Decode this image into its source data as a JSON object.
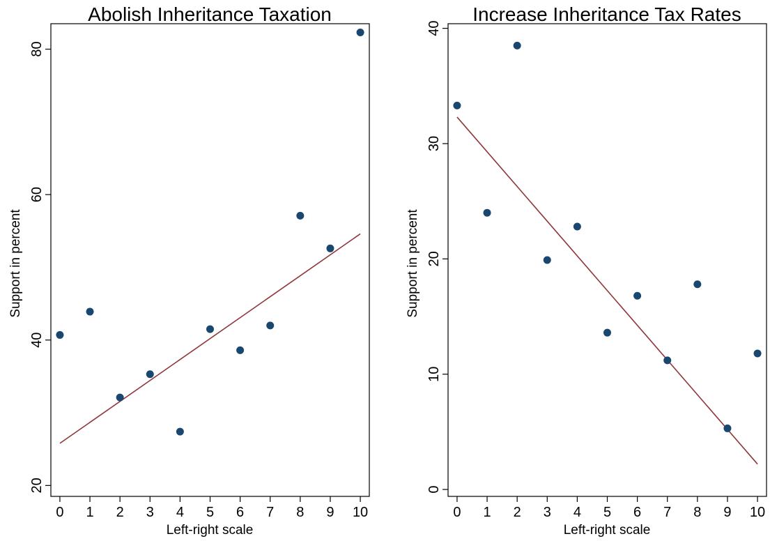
{
  "chart_data": [
    {
      "type": "scatter",
      "title": "Abolish Inheritance Taxation",
      "xlabel": "Left-right scale",
      "ylabel": "Support in percent",
      "xlim": [
        -0.3,
        10.3
      ],
      "ylim": [
        18.5,
        83.5
      ],
      "xticks": [
        0,
        1,
        2,
        3,
        4,
        5,
        6,
        7,
        8,
        9,
        10
      ],
      "xticklabels": [
        "0",
        "1",
        "2",
        "3",
        "4",
        "5",
        "6",
        "7",
        "8",
        "9",
        "10"
      ],
      "yticks": [
        20,
        40,
        60,
        80
      ],
      "yticklabels": [
        "20",
        "40",
        "60",
        "80"
      ],
      "grid": false,
      "series": [
        {
          "type": "scatter",
          "x": [
            0,
            1,
            2,
            3,
            4,
            5,
            6,
            7,
            8,
            9,
            10
          ],
          "values": [
            40.7,
            43.9,
            32.1,
            35.3,
            27.4,
            41.5,
            38.6,
            42.0,
            57.1,
            52.6,
            82.3
          ]
        },
        {
          "type": "line",
          "x": [
            0,
            10
          ],
          "values": [
            25.8,
            54.6
          ]
        }
      ],
      "colors": {
        "points": "#1a476f",
        "fit": "#90353b",
        "frame": "#000000"
      }
    },
    {
      "type": "scatter",
      "title": "Increase Inheritance Tax Rates",
      "xlabel": "Left-right scale",
      "ylabel": "Support in percent",
      "xlim": [
        -0.3,
        10.3
      ],
      "ylim": [
        -0.6,
        40.4
      ],
      "xticks": [
        0,
        1,
        2,
        3,
        4,
        5,
        6,
        7,
        8,
        9,
        10
      ],
      "xticklabels": [
        "0",
        "1",
        "2",
        "3",
        "4",
        "5",
        "6",
        "7",
        "8",
        "9",
        "10"
      ],
      "yticks": [
        0,
        10,
        20,
        30,
        40
      ],
      "yticklabels": [
        "0",
        "10",
        "20",
        "30",
        "40"
      ],
      "grid": false,
      "series": [
        {
          "type": "scatter",
          "x": [
            0,
            1,
            2,
            3,
            4,
            5,
            6,
            7,
            8,
            9,
            10
          ],
          "values": [
            33.3,
            24.0,
            38.5,
            19.9,
            22.8,
            13.6,
            16.8,
            11.2,
            17.8,
            5.3,
            11.8
          ]
        },
        {
          "type": "line",
          "x": [
            0,
            10
          ],
          "values": [
            32.3,
            2.2
          ]
        }
      ],
      "colors": {
        "points": "#1a476f",
        "fit": "#90353b",
        "frame": "#000000"
      }
    }
  ]
}
